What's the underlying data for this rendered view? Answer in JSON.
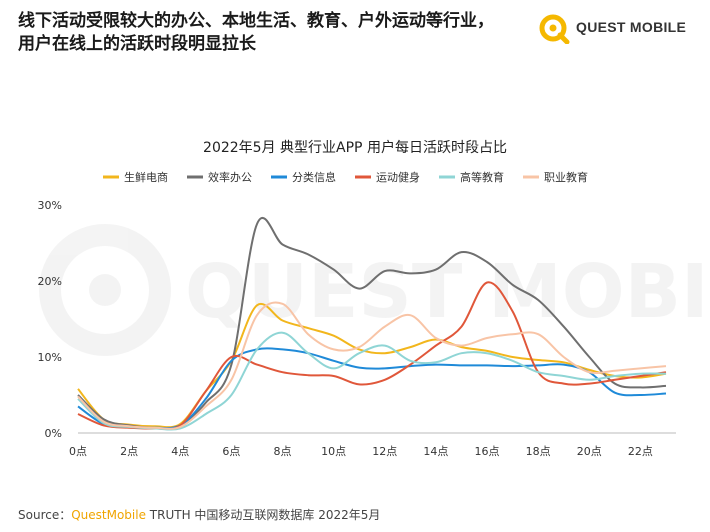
{
  "headline": {
    "line1": "线下活动受限较大的办公、本地生活、教育、户外运动等行业，",
    "line2": "用户在线上的活跃时段明显拉长"
  },
  "logo": {
    "text": "QUEST MOBILE",
    "watermark": "QUEST MOBILE",
    "accent": "#f5b800"
  },
  "source": {
    "prefix": "Source：",
    "brand": "QuestMobile",
    "rest": " TRUTH 中国移动互联网数据库 2022年5月"
  },
  "chart_data": {
    "type": "line",
    "title": "2022年5月 典型行业APP 用户每日活跃时段占比",
    "x": [
      0,
      1,
      2,
      3,
      4,
      5,
      6,
      7,
      8,
      9,
      10,
      11,
      12,
      13,
      14,
      15,
      16,
      17,
      18,
      19,
      20,
      21,
      22,
      23
    ],
    "x_tick_labels": [
      "0点",
      "2点",
      "4点",
      "6点",
      "8点",
      "10点",
      "12点",
      "14点",
      "16点",
      "18点",
      "20点",
      "22点"
    ],
    "x_tick_values": [
      0,
      2,
      4,
      6,
      8,
      10,
      12,
      14,
      16,
      18,
      20,
      22
    ],
    "y_tick_labels": [
      "0%",
      "10%",
      "20%",
      "30%"
    ],
    "y_tick_values": [
      0,
      10,
      20,
      30
    ],
    "ylim": [
      0,
      30
    ],
    "legend_position": "top",
    "series": [
      {
        "name": "生鲜电商",
        "color": "#f2b61c",
        "values": [
          5.8,
          1.8,
          1.1,
          0.9,
          1.2,
          5.5,
          9.5,
          16.8,
          14.8,
          13.8,
          12.8,
          11.0,
          10.5,
          11.3,
          12.3,
          11.3,
          10.8,
          10.0,
          9.6,
          9.3,
          8.3,
          7.5,
          7.3,
          7.8
        ]
      },
      {
        "name": "效率办公",
        "color": "#6f6f6f",
        "values": [
          5.0,
          1.8,
          1.0,
          0.7,
          1.0,
          4.0,
          9.0,
          27.5,
          24.8,
          23.5,
          21.5,
          19.0,
          21.3,
          21.0,
          21.5,
          23.8,
          22.5,
          19.5,
          17.5,
          14.0,
          10.0,
          6.5,
          6.0,
          6.2
        ]
      },
      {
        "name": "分类信息",
        "color": "#1f8ad8",
        "values": [
          3.5,
          1.2,
          0.8,
          0.7,
          1.0,
          4.5,
          9.5,
          11.0,
          11.0,
          10.5,
          9.5,
          8.6,
          8.5,
          8.8,
          9.0,
          8.9,
          8.9,
          8.8,
          8.9,
          9.0,
          8.0,
          5.3,
          5.0,
          5.2
        ]
      },
      {
        "name": "运动健身",
        "color": "#e0573a",
        "values": [
          2.5,
          1.0,
          0.7,
          0.6,
          1.0,
          5.5,
          10.0,
          9.0,
          8.0,
          7.6,
          7.5,
          6.4,
          7.0,
          9.0,
          11.5,
          14.0,
          19.8,
          16.0,
          8.0,
          6.5,
          6.5,
          7.0,
          7.5,
          8.0
        ]
      },
      {
        "name": "高等教育",
        "color": "#8fd5d5",
        "values": [
          4.5,
          1.3,
          0.8,
          0.6,
          0.6,
          2.5,
          5.0,
          11.0,
          13.2,
          10.5,
          8.5,
          10.5,
          11.5,
          9.5,
          9.3,
          10.5,
          10.5,
          9.5,
          8.0,
          7.5,
          7.0,
          7.5,
          7.8,
          7.8
        ]
      },
      {
        "name": "职业教育",
        "color": "#f8c4a6",
        "values": [
          4.8,
          1.5,
          0.9,
          0.7,
          0.8,
          3.5,
          7.0,
          15.5,
          17.0,
          13.0,
          11.0,
          11.3,
          14.0,
          15.5,
          12.5,
          11.5,
          12.5,
          13.0,
          13.0,
          10.0,
          8.0,
          8.2,
          8.5,
          8.8
        ]
      }
    ]
  }
}
